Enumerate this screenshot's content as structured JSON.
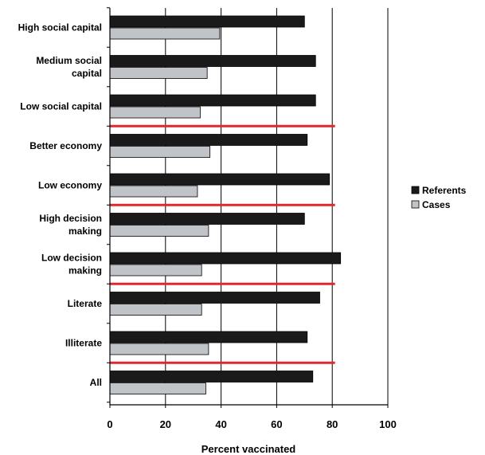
{
  "chart_data": {
    "type": "bar",
    "orientation": "horizontal",
    "title": "",
    "xlabel": "Percent vaccinated",
    "ylabel": "",
    "xlim": [
      0,
      100
    ],
    "xticks": [
      0,
      20,
      40,
      60,
      80,
      100
    ],
    "grid": "vertical",
    "legend_position": "right",
    "categories": [
      [
        "High social capital"
      ],
      [
        "Medium social",
        "capital"
      ],
      [
        "Low social capital"
      ],
      [
        "Better economy"
      ],
      [
        "Low economy"
      ],
      [
        "High decision",
        "making"
      ],
      [
        "Low decision",
        "making"
      ],
      [
        "Literate"
      ],
      [
        "Illiterate"
      ],
      [
        "All"
      ]
    ],
    "series": [
      {
        "name": "Referents",
        "color": "#1a1a1a",
        "values": [
          70,
          74,
          74,
          71,
          79,
          70,
          83,
          75.5,
          71,
          73
        ]
      },
      {
        "name": "Cases",
        "color": "#c0c4c8",
        "values": [
          39.5,
          35,
          32.5,
          36,
          31.5,
          35.5,
          33,
          33,
          35.5,
          34.5
        ]
      }
    ],
    "group_separators_after": [
      2,
      4,
      6,
      8
    ],
    "separator_color": "#e0282e"
  }
}
